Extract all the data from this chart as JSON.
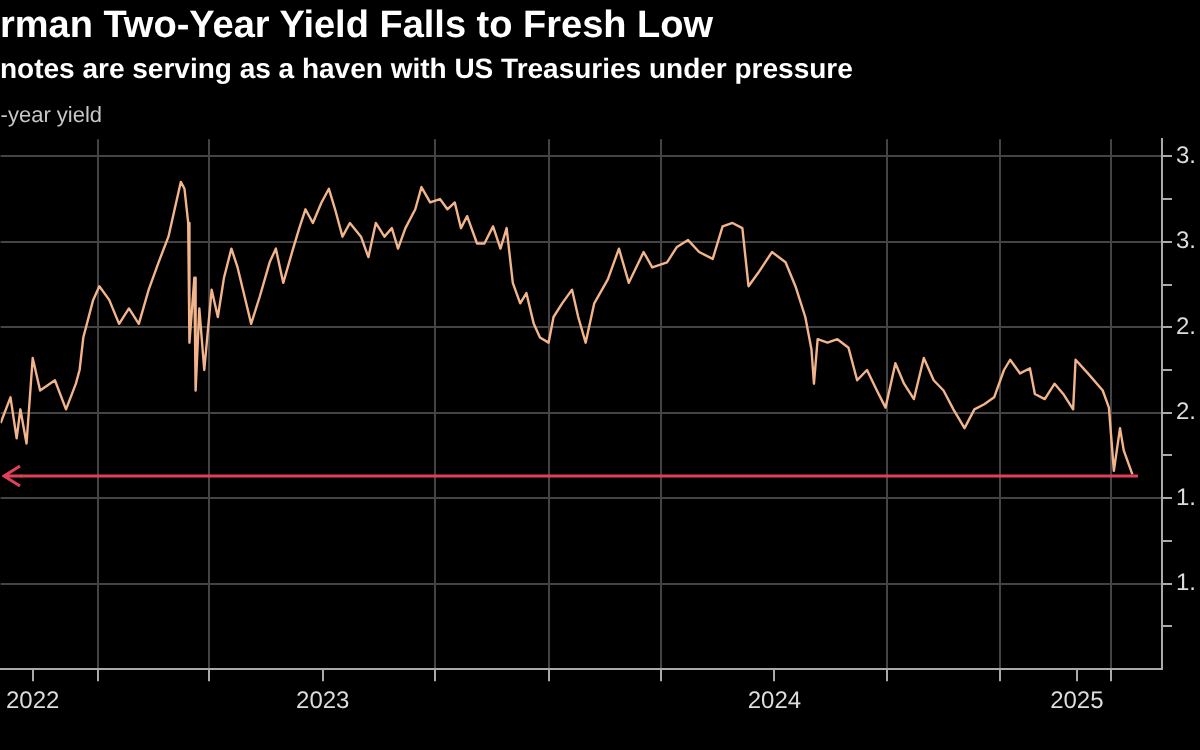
{
  "chart_data": {
    "type": "line",
    "title": "rman Two-Year Yield Falls to Fresh Low",
    "subtitle": "notes are serving as a haven with US Treasuries under pressure",
    "ylabel": "-year yield",
    "series": [
      {
        "color": "#f2b48a",
        "x": [
          "2022-10-14",
          "2022-10-22",
          "2022-10-27",
          "2022-10-30",
          "2022-11-04",
          "2022-11-09",
          "2022-11-15",
          "2022-11-27",
          "2022-12-06",
          "2022-12-14",
          "2022-12-17",
          "2022-12-20",
          "2022-12-28",
          "2023-01-02",
          "2023-01-10",
          "2023-01-18",
          "2023-01-26",
          "2023-02-03",
          "2023-02-11",
          "2023-02-19",
          "2023-02-27",
          "2023-03-04",
          "2023-03-09",
          "2023-03-12",
          "2023-03-15",
          "2023-03-16",
          "2023-03-20",
          "2023-03-21",
          "2023-03-24",
          "2023-03-28",
          "2023-04-03",
          "2023-04-08",
          "2023-04-13",
          "2023-04-19",
          "2023-04-24",
          "2023-05-01",
          "2023-05-05",
          "2023-05-12",
          "2023-05-20",
          "2023-05-25",
          "2023-05-31",
          "2023-06-08",
          "2023-06-13",
          "2023-06-18",
          "2023-06-24",
          "2023-07-01",
          "2023-07-07",
          "2023-07-12",
          "2023-07-18",
          "2023-07-24",
          "2023-08-02",
          "2023-08-08",
          "2023-08-14",
          "2023-08-21",
          "2023-08-27",
          "2023-09-01",
          "2023-09-07",
          "2023-09-15",
          "2023-09-20",
          "2023-09-27",
          "2023-10-05",
          "2023-10-11",
          "2023-10-17",
          "2023-10-22",
          "2023-10-27",
          "2023-11-04",
          "2023-11-10",
          "2023-11-17",
          "2023-11-23",
          "2023-11-28",
          "2023-12-03",
          "2023-12-09",
          "2023-12-14",
          "2023-12-20",
          "2023-12-25",
          "2024-01-01",
          "2024-01-05",
          "2024-01-12",
          "2024-01-20",
          "2024-01-25",
          "2024-01-31",
          "2024-02-07",
          "2024-02-18",
          "2024-02-27",
          "2024-03-06",
          "2024-03-18",
          "2024-03-25",
          "2024-04-06",
          "2024-04-14",
          "2024-04-23",
          "2024-05-02",
          "2024-05-13",
          "2024-05-21",
          "2024-05-29",
          "2024-06-06",
          "2024-06-11",
          "2024-06-19",
          "2024-06-30",
          "2024-07-11",
          "2024-07-19",
          "2024-07-27",
          "2024-08-01",
          "2024-08-03",
          "2024-08-06",
          "2024-08-14",
          "2024-08-22",
          "2024-08-31",
          "2024-09-07",
          "2024-09-15",
          "2024-09-23",
          "2024-09-30",
          "2024-10-08",
          "2024-10-15",
          "2024-10-23",
          "2024-10-31",
          "2024-11-08",
          "2024-11-16",
          "2024-11-24",
          "2024-12-03",
          "2024-12-11",
          "2024-12-19",
          "2024-12-27",
          "2025-01-04",
          "2025-01-09",
          "2025-01-17",
          "2025-01-25",
          "2025-01-29",
          "2025-02-06",
          "2025-02-14",
          "2025-02-21",
          "2025-03-01",
          "2025-03-03",
          "2025-03-13",
          "2025-03-25",
          "2025-03-30",
          "2025-04-03",
          "2025-04-08",
          "2025-04-11",
          "2025-04-18"
        ],
        "values": [
          1.94,
          2.09,
          1.85,
          2.02,
          1.82,
          2.32,
          2.13,
          2.19,
          2.02,
          2.17,
          2.25,
          2.44,
          2.66,
          2.74,
          2.66,
          2.52,
          2.61,
          2.52,
          2.72,
          2.88,
          3.03,
          3.19,
          3.35,
          3.31,
          3.11,
          2.41,
          2.79,
          2.13,
          2.61,
          2.25,
          2.72,
          2.56,
          2.79,
          2.96,
          2.85,
          2.64,
          2.52,
          2.68,
          2.88,
          2.96,
          2.76,
          2.96,
          3.08,
          3.19,
          3.11,
          3.23,
          3.31,
          3.19,
          3.03,
          3.11,
          3.03,
          2.91,
          3.11,
          3.03,
          3.08,
          2.96,
          3.08,
          3.19,
          3.32,
          3.23,
          3.25,
          3.19,
          3.23,
          3.08,
          3.15,
          2.99,
          2.99,
          3.09,
          2.96,
          3.08,
          2.76,
          2.64,
          2.7,
          2.52,
          2.44,
          2.41,
          2.56,
          2.64,
          2.72,
          2.56,
          2.41,
          2.64,
          2.78,
          2.96,
          2.76,
          2.94,
          2.85,
          2.88,
          2.97,
          3.01,
          2.94,
          2.9,
          3.09,
          3.11,
          3.08,
          2.74,
          2.82,
          2.94,
          2.88,
          2.74,
          2.56,
          2.37,
          2.17,
          2.43,
          2.41,
          2.43,
          2.38,
          2.19,
          2.25,
          2.13,
          2.03,
          2.29,
          2.17,
          2.08,
          2.32,
          2.19,
          2.13,
          2.02,
          1.91,
          2.02,
          2.05,
          2.09,
          2.25,
          2.31,
          2.23,
          2.26,
          2.11,
          2.08,
          2.17,
          2.11,
          2.02,
          2.31,
          2.23,
          2.13,
          2.03,
          1.66,
          1.91,
          1.78,
          1.64
        ]
      }
    ],
    "xlim": [
      "2022-10-14",
      "2025-05-12"
    ],
    "xticks": [
      {
        "value": "2022-11-09",
        "label": "2022"
      },
      {
        "value": "2023-01-01",
        "label": null
      },
      {
        "value": "2023-04-01",
        "label": null
      },
      {
        "value": "2023-07-02",
        "label": "2023"
      },
      {
        "value": "2023-10-01",
        "label": null
      },
      {
        "value": "2024-01-01",
        "label": null
      },
      {
        "value": "2024-04-01",
        "label": null
      },
      {
        "value": "2024-07-02",
        "label": "2024"
      },
      {
        "value": "2024-10-01",
        "label": null
      },
      {
        "value": "2025-01-01",
        "label": null
      },
      {
        "value": "2025-03-04",
        "label": "2025"
      },
      {
        "value": "2025-04-01",
        "label": null
      }
    ],
    "ylim": [
      0.5,
      3.6
    ],
    "yticks": [
      {
        "value": 0.75,
        "label": null
      },
      {
        "value": 1,
        "label": "1."
      },
      {
        "value": 1.25,
        "label": null
      },
      {
        "value": 1.5,
        "label": "1."
      },
      {
        "value": 1.75,
        "label": null
      },
      {
        "value": 2,
        "label": "2."
      },
      {
        "value": 2.25,
        "label": null
      },
      {
        "value": 2.5,
        "label": "2."
      },
      {
        "value": 2.75,
        "label": null
      },
      {
        "value": 3,
        "label": "3."
      },
      {
        "value": 3.25,
        "label": null
      },
      {
        "value": 3.5,
        "label": "3."
      }
    ],
    "ref_lines": [
      {
        "axis": "y",
        "value": 1.63,
        "color": "#e0405a"
      }
    ],
    "grid": true,
    "legend": false,
    "marker": "none",
    "line_style": "solid"
  }
}
